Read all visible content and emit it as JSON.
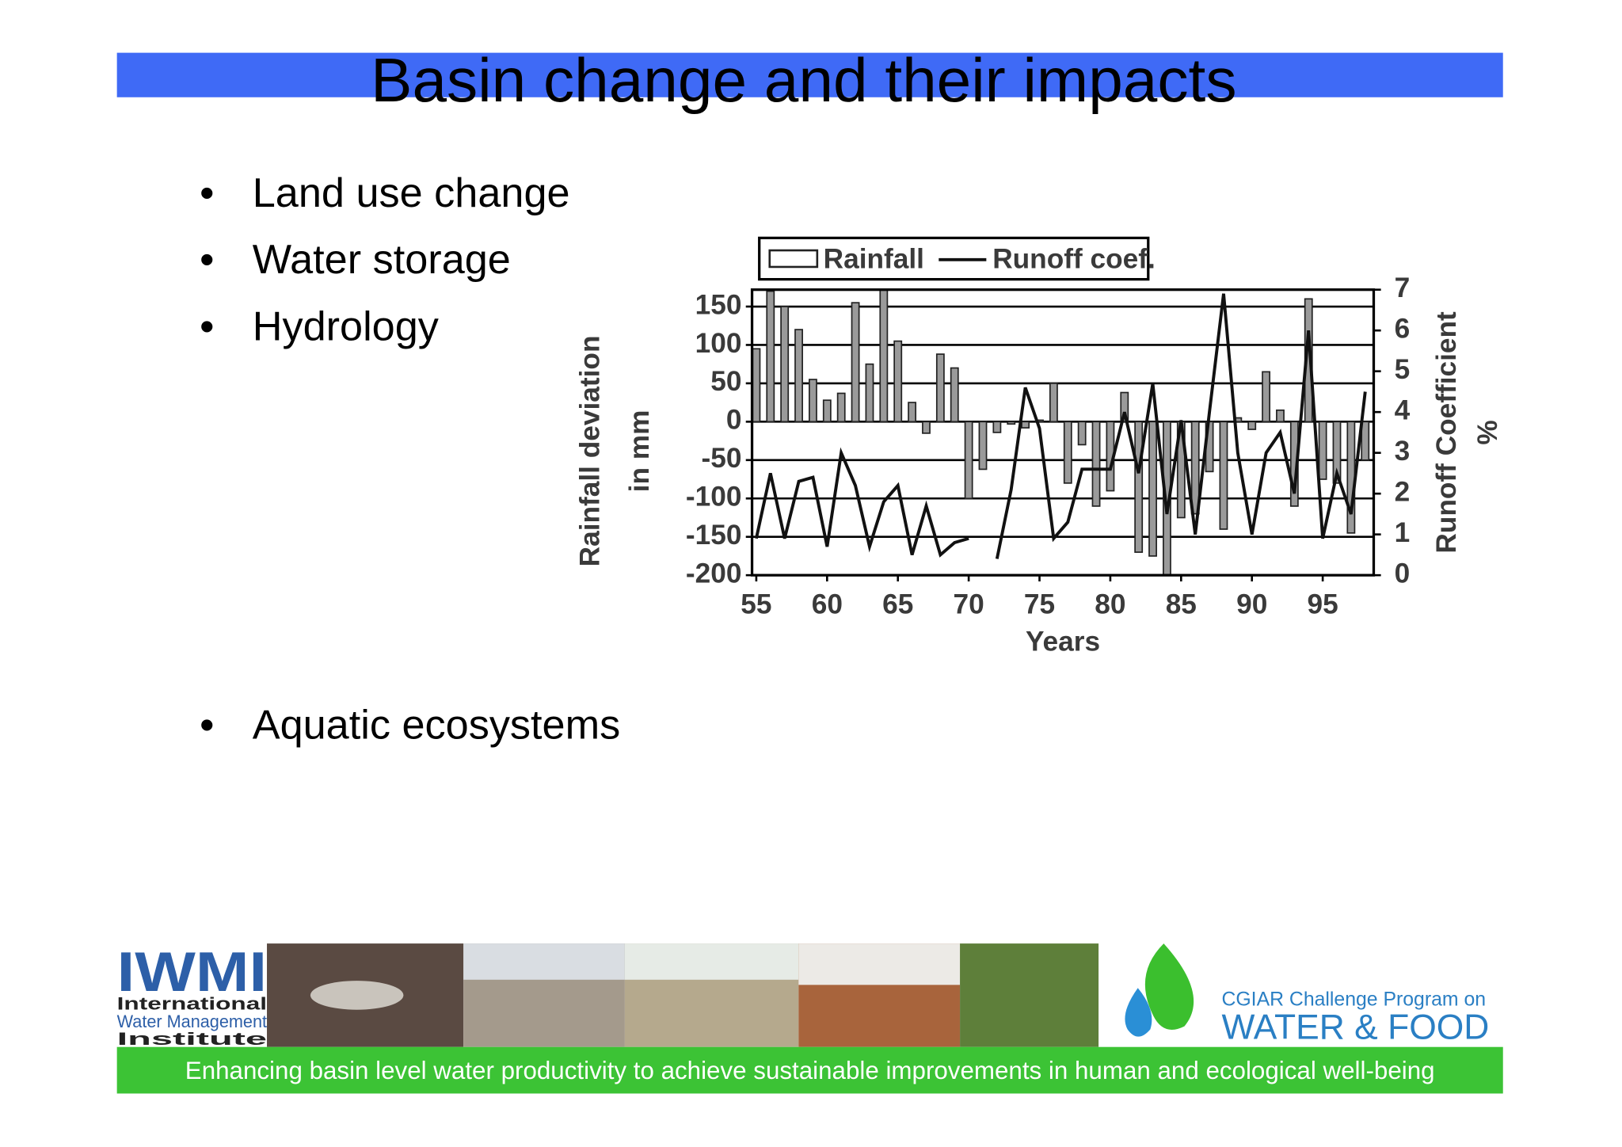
{
  "title": "Basin change and their impacts",
  "bullets": [
    "Land use change",
    "Water storage",
    "Hydrology",
    "Aquatic ecosystems"
  ],
  "chart_data": {
    "type": "bar-line",
    "x": [
      55,
      56,
      57,
      58,
      59,
      60,
      61,
      62,
      63,
      64,
      65,
      66,
      67,
      68,
      69,
      70,
      71,
      72,
      73,
      74,
      75,
      76,
      77,
      78,
      79,
      80,
      81,
      82,
      83,
      84,
      85,
      86,
      87,
      88,
      89,
      90,
      91,
      92,
      93,
      94,
      95,
      96,
      97,
      98
    ],
    "series": [
      {
        "name": "Rainfall",
        "type": "bar",
        "color": "#9a9a9a",
        "values": [
          95,
          170,
          150,
          120,
          55,
          28,
          37,
          155,
          75,
          172,
          105,
          25,
          -15,
          88,
          70,
          -100,
          -62,
          -14,
          -3,
          -8,
          2,
          50,
          -80,
          -30,
          -110,
          -90,
          38,
          -170,
          -175,
          -200,
          -125,
          -120,
          -65,
          -140,
          5,
          -10,
          65,
          15,
          -110,
          160,
          -75,
          -80,
          -145,
          -50
        ]
      },
      {
        "name": "Runoff coef.",
        "type": "line",
        "axis": "y2",
        "color": "#111111",
        "values": [
          0.9,
          2.5,
          0.9,
          2.3,
          2.4,
          0.7,
          3.0,
          2.2,
          0.7,
          1.8,
          2.2,
          0.5,
          1.7,
          0.5,
          0.8,
          0.9,
          null,
          0.4,
          2.1,
          4.6,
          3.6,
          0.9,
          1.3,
          2.6,
          2.6,
          2.6,
          4.0,
          2.5,
          4.7,
          1.5,
          3.8,
          1.0,
          4.0,
          6.9,
          3.0,
          1.0,
          3.0,
          3.5,
          2.0,
          6.0,
          0.9,
          2.5,
          1.5,
          4.5
        ]
      }
    ],
    "xlim": [
      54.7,
      98.6
    ],
    "xticks": [
      55,
      60,
      65,
      70,
      75,
      80,
      85,
      90,
      95
    ],
    "ylim": [
      -200,
      172
    ],
    "yticks": [
      150,
      100,
      50,
      0,
      -50,
      -100,
      -150,
      -200
    ],
    "y2lim": [
      0,
      7
    ],
    "y2ticks": [
      0,
      1,
      2,
      3,
      4,
      5,
      6,
      7
    ],
    "xlabel": "Years",
    "ylabel": [
      "Rainfall deviation",
      "in mm"
    ],
    "y2label": [
      "Runoff Coefficient",
      "%"
    ],
    "grid": true,
    "legend": "top"
  },
  "footer": {
    "left_logo": {
      "mark": "IWMI",
      "lines": [
        "International",
        "Water Management",
        "Institute"
      ]
    },
    "right_logo": [
      "CGIAR Challenge Program on",
      "WATER & FOOD"
    ],
    "tagline": "Enhancing basin level water productivity to achieve sustainable improvements in human and ecological well-being"
  }
}
